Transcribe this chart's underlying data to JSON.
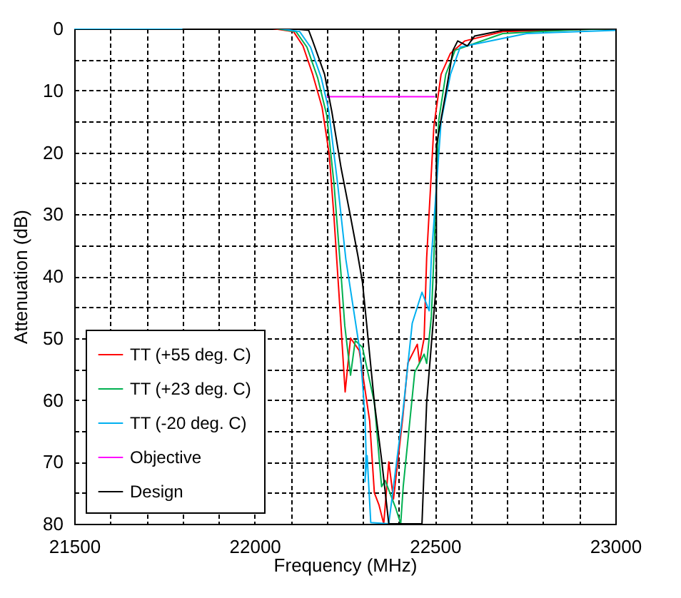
{
  "chart_data": {
    "type": "line",
    "xlabel": "Frequency (MHz)",
    "ylabel": "Attenuation (dB)",
    "xlim": [
      21500,
      23000
    ],
    "ylim": [
      80,
      0
    ],
    "xticks": [
      21500,
      {
        "value": 21600,
        "label": null
      },
      {
        "value": 21700,
        "label": null
      },
      {
        "value": 21800,
        "label": null
      },
      {
        "value": 21900,
        "label": null
      },
      22000,
      {
        "value": 22100,
        "label": null
      },
      {
        "value": 22200,
        "label": null
      },
      {
        "value": 22300,
        "label": null
      },
      {
        "value": 22400,
        "label": null
      },
      22500,
      {
        "value": 22600,
        "label": null
      },
      {
        "value": 22700,
        "label": null
      },
      {
        "value": 22800,
        "label": null
      },
      {
        "value": 22900,
        "label": null
      },
      23000
    ],
    "yticks": [
      0,
      {
        "value": 5,
        "label": null
      },
      10,
      {
        "value": 15,
        "label": null
      },
      20,
      {
        "value": 25,
        "label": null
      },
      30,
      {
        "value": 35,
        "label": null
      },
      40,
      {
        "value": 45,
        "label": null
      },
      50,
      {
        "value": 55,
        "label": null
      },
      60,
      {
        "value": 65,
        "label": null
      },
      70,
      {
        "value": 75,
        "label": null
      },
      80
    ],
    "grid": true,
    "legend": "bottom left",
    "series": [
      {
        "name": "TT (+55 deg. C)",
        "color": "#ff0000",
        "x": [
          21500,
          22050,
          22108,
          22134,
          22161,
          22187,
          22207,
          22220,
          22233,
          22251,
          22266,
          22290,
          22319,
          22332,
          22345,
          22358,
          22372,
          22385,
          22411,
          22425,
          22451,
          22457,
          22470,
          22477,
          22497,
          22517,
          22543,
          22583,
          22688,
          22820,
          23000
        ],
        "values": [
          0,
          0,
          0.5,
          2.8,
          7.4,
          12.7,
          20.4,
          30.4,
          42,
          58.7,
          50,
          52,
          63.4,
          75,
          77,
          80,
          70,
          76,
          62.7,
          54,
          51,
          54,
          50,
          37,
          15.8,
          7.4,
          4,
          2,
          0.5,
          0.3,
          0
        ]
      },
      {
        "name": "TT (+23 deg. C)",
        "color": "#00b050",
        "x": [
          21500,
          22060,
          22115,
          22145,
          22175,
          22200,
          22220,
          22240,
          22250,
          22266,
          22279,
          22299,
          22332,
          22352,
          22362,
          22392,
          22405,
          22412,
          22431,
          22444,
          22470,
          22477,
          22490,
          22497,
          22510,
          22530,
          22556,
          22688,
          22886,
          23000
        ],
        "values": [
          0,
          0,
          0.5,
          3,
          8,
          14,
          25,
          40,
          48,
          56,
          50.4,
          51.5,
          60.4,
          74,
          73,
          77.6,
          80,
          74,
          63,
          55.5,
          52.6,
          54.1,
          46.5,
          37,
          15,
          7.4,
          3.5,
          0.8,
          0.2,
          0
        ]
      },
      {
        "name": "TT (-20 deg. C)",
        "color": "#00b0f0",
        "x": [
          21500,
          22070,
          22125,
          22155,
          22185,
          22205,
          22230,
          22253,
          22293,
          22306,
          22309,
          22306,
          22312,
          22322,
          22372,
          22411,
          22437,
          22464,
          22484,
          22490,
          22517,
          22543,
          22570,
          22754,
          23000
        ],
        "values": [
          0,
          0,
          0.5,
          3,
          8,
          13,
          25,
          37.3,
          52.5,
          62.5,
          68.6,
          73.2,
          69,
          79.8,
          80,
          62,
          47.6,
          42.6,
          45.6,
          37,
          15,
          7.4,
          3,
          0.8,
          0.3
        ]
      },
      {
        "name": "Objective",
        "color": "#ff00ff",
        "x": [
          22200,
          22500
        ],
        "values": [
          11,
          11
        ]
      },
      {
        "name": "Design",
        "color": "#000000",
        "x": [
          21800,
          22100,
          22150,
          22161,
          22194,
          22214,
          22240,
          22266,
          22286,
          22299,
          22306,
          22332,
          22352,
          22372,
          22464,
          22477,
          22504,
          22504,
          22530,
          22550,
          22563,
          22590,
          22610,
          22688,
          23000
        ],
        "values": [
          0,
          0,
          0.3,
          2,
          7.4,
          13.4,
          22.6,
          30.4,
          36.6,
          41,
          45,
          60.4,
          69.6,
          80,
          80,
          60.4,
          41,
          18.9,
          10.4,
          3.5,
          2,
          2.8,
          1.2,
          0.3,
          0
        ]
      }
    ]
  }
}
